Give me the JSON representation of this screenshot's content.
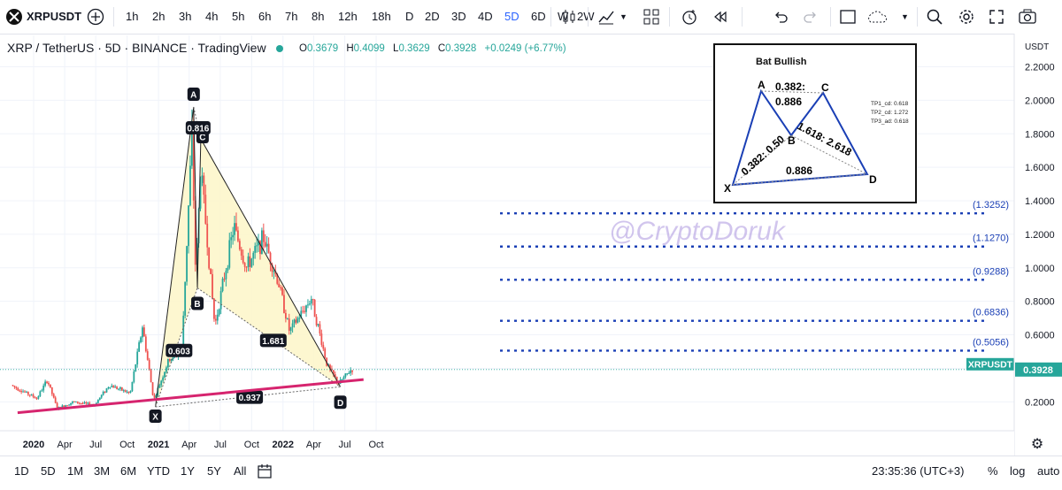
{
  "toolbar": {
    "symbol": "XRPUSDT",
    "intervals": [
      "1h",
      "2h",
      "3h",
      "4h",
      "5h",
      "6h",
      "7h",
      "8h",
      "12h",
      "18h",
      "D",
      "2D",
      "3D",
      "4D",
      "5D",
      "6D",
      "W",
      "2W"
    ],
    "active_interval": "5D"
  },
  "legend": {
    "title": "XRP / TetherUS · 5D · BINANCE · TradingView",
    "open_label": "O",
    "open": "0.3679",
    "high_label": "H",
    "high": "0.4099",
    "low_label": "L",
    "low": "0.3629",
    "close_label": "C",
    "close": "0.3928",
    "change": "+0.0249 (+6.77%)",
    "color": "#26a69a"
  },
  "colors": {
    "up": "#26a69a",
    "down": "#ef5350",
    "trendline": "#d6246e",
    "levels": "#1a3fb5",
    "pattern_fill": "#fdf6c8"
  },
  "watermark": "@CryptoDoruk",
  "chart_data": {
    "type": "candlestick",
    "symbol": "XRPUSDT",
    "timeframe": "5D",
    "price_axis": {
      "currency": "USDT",
      "ticks": [
        0.2,
        0.4,
        0.6,
        0.8,
        1.0,
        1.2,
        1.4,
        1.6,
        1.8,
        2.0,
        2.2
      ],
      "range": [
        0.0,
        2.28
      ]
    },
    "time_axis": {
      "ticks": [
        "2020",
        "Apr",
        "Jul",
        "Oct",
        "2021",
        "Apr",
        "Jul",
        "Oct",
        "2022",
        "Apr",
        "Jul",
        "Oct"
      ]
    },
    "last_price": 0.3928,
    "pattern": {
      "name": "Bat Bullish",
      "points": [
        {
          "label": "X",
          "date": "2020-12-23",
          "price": 0.17
        },
        {
          "label": "A",
          "date": "2021-04-14",
          "price": 1.96
        },
        {
          "label": "B",
          "date": "2021-04-25",
          "price": 0.88
        },
        {
          "label": "C",
          "date": "2021-05-05",
          "price": 1.77
        },
        {
          "label": "D",
          "date": "2022-06-18",
          "price": 0.29
        }
      ],
      "ratios": [
        "0.603",
        "0.816",
        "1.681",
        "0.937"
      ]
    },
    "levels": [
      {
        "label": "(1.3252)",
        "price": 1.3252
      },
      {
        "label": "(1.1270)",
        "price": 1.127
      },
      {
        "label": "(0.9288)",
        "price": 0.9288
      },
      {
        "label": "(0.6836)",
        "price": 0.6836
      },
      {
        "label": "(0.5056)",
        "price": 0.5056
      }
    ],
    "trendline": {
      "from": {
        "date": "2019-11-15",
        "price": 0.135
      },
      "to": {
        "date": "2022-08-25",
        "price": 0.333
      }
    },
    "price_series": [
      {
        "date": "2019-11-01",
        "price": 0.3
      },
      {
        "date": "2020-01-15",
        "price": 0.22
      },
      {
        "date": "2020-02-15",
        "price": 0.33
      },
      {
        "date": "2020-03-15",
        "price": 0.16
      },
      {
        "date": "2020-05-01",
        "price": 0.2
      },
      {
        "date": "2020-07-01",
        "price": 0.18
      },
      {
        "date": "2020-08-15",
        "price": 0.3
      },
      {
        "date": "2020-10-15",
        "price": 0.25
      },
      {
        "date": "2020-11-20",
        "price": 0.65
      },
      {
        "date": "2020-12-23",
        "price": 0.21
      },
      {
        "date": "2021-02-05",
        "price": 0.45
      },
      {
        "date": "2021-03-15",
        "price": 0.5
      },
      {
        "date": "2021-04-14",
        "price": 1.8
      },
      {
        "date": "2021-04-25",
        "price": 0.95
      },
      {
        "date": "2021-05-10",
        "price": 1.6
      },
      {
        "date": "2021-06-20",
        "price": 0.65
      },
      {
        "date": "2021-08-15",
        "price": 1.25
      },
      {
        "date": "2021-09-20",
        "price": 1.0
      },
      {
        "date": "2021-11-10",
        "price": 1.18
      },
      {
        "date": "2021-12-25",
        "price": 0.9
      },
      {
        "date": "2022-01-25",
        "price": 0.62
      },
      {
        "date": "2022-03-30",
        "price": 0.82
      },
      {
        "date": "2022-05-15",
        "price": 0.42
      },
      {
        "date": "2022-06-18",
        "price": 0.31
      },
      {
        "date": "2022-07-25",
        "price": 0.3928
      }
    ]
  },
  "inset": {
    "title": "Bat Bullish",
    "labels": {
      "x": "X",
      "a": "A",
      "b": "B",
      "c": "C",
      "d": "D"
    },
    "ratios": {
      "ab": "0.382: 0.50",
      "ac": "0.382:",
      "bc": "0.886",
      "cd": "1.618: 2.618",
      "xd": "0.886"
    },
    "targets": [
      "TP1_cd: 0.618",
      "TP2_cd: 1.272",
      "TP3_ad: 0.618"
    ]
  },
  "bottombar": {
    "ranges": [
      "1D",
      "5D",
      "1M",
      "3M",
      "6M",
      "YTD",
      "1Y",
      "5Y",
      "All"
    ],
    "time": "23:35:36 (UTC+3)",
    "percent": "%",
    "log": "log",
    "auto": "auto"
  }
}
